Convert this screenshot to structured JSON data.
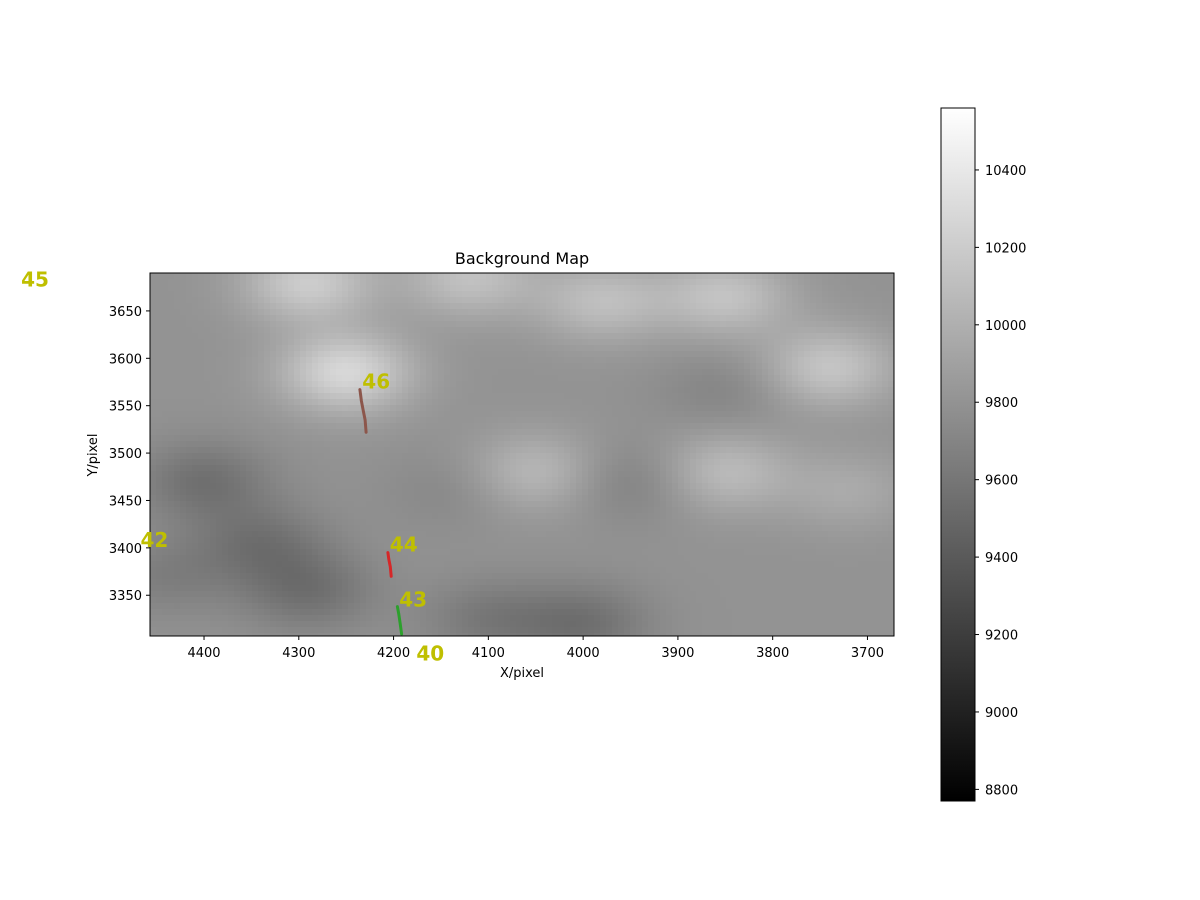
{
  "chart_data": {
    "type": "heatmap",
    "title": "Background Map",
    "xlabel": "X/pixel",
    "ylabel": "Y/pixel",
    "xlim": [
      4457,
      3672
    ],
    "ylim": [
      3307,
      3690
    ],
    "x_ticks": [
      4400,
      4300,
      4200,
      4100,
      4000,
      3900,
      3800,
      3700
    ],
    "y_ticks": [
      3350,
      3400,
      3450,
      3500,
      3550,
      3600,
      3650
    ],
    "colormap": "gray",
    "base_value": 9800,
    "blobs": [
      {
        "x": 4250,
        "y": 3585,
        "v": 10280
      },
      {
        "x": 4290,
        "y": 3680,
        "v": 10200
      },
      {
        "x": 4120,
        "y": 3685,
        "v": 10120
      },
      {
        "x": 3980,
        "y": 3660,
        "v": 10100
      },
      {
        "x": 3850,
        "y": 3665,
        "v": 10130
      },
      {
        "x": 3740,
        "y": 3590,
        "v": 10150
      },
      {
        "x": 4050,
        "y": 3480,
        "v": 10060
      },
      {
        "x": 3850,
        "y": 3480,
        "v": 10080
      },
      {
        "x": 3720,
        "y": 3460,
        "v": 9960
      },
      {
        "x": 4400,
        "y": 3470,
        "v": 9560
      },
      {
        "x": 4340,
        "y": 3405,
        "v": 9580
      },
      {
        "x": 4290,
        "y": 3355,
        "v": 9560
      },
      {
        "x": 4000,
        "y": 3320,
        "v": 9560
      },
      {
        "x": 4100,
        "y": 3325,
        "v": 9620
      },
      {
        "x": 3950,
        "y": 3470,
        "v": 9660
      },
      {
        "x": 3850,
        "y": 3565,
        "v": 9700
      },
      {
        "x": 4140,
        "y": 3460,
        "v": 9720
      },
      {
        "x": 4440,
        "y": 3370,
        "v": 9660
      }
    ],
    "tracks": [
      {
        "id": "46",
        "color": "#8c564b",
        "points": [
          [
            4235.5,
            3567
          ],
          [
            4234,
            3555
          ],
          [
            4232,
            3545
          ],
          [
            4230,
            3535
          ],
          [
            4229,
            3522
          ]
        ]
      },
      {
        "id": "44",
        "color": "#d62728",
        "points": [
          [
            4206,
            3395
          ],
          [
            4205,
            3388
          ],
          [
            4203.5,
            3380
          ],
          [
            4202.5,
            3370
          ]
        ]
      },
      {
        "id": "43",
        "color": "#2ca02c",
        "points": [
          [
            4196,
            3338
          ],
          [
            4194.5,
            3330
          ],
          [
            4193,
            3320
          ],
          [
            4191.5,
            3309
          ]
        ]
      }
    ],
    "track_labels": [
      {
        "text": "46",
        "x": 4233,
        "y": 3568
      },
      {
        "text": "44",
        "x": 4204,
        "y": 3396
      },
      {
        "text": "43",
        "x": 4194,
        "y": 3338
      },
      {
        "text": "42",
        "x": 4467,
        "y": 3401
      },
      {
        "text": "40",
        "x": 4176,
        "y": 3281
      },
      {
        "text": "45",
        "x": 4593,
        "y": 3676
      }
    ],
    "label_color": "#bfbf00",
    "colorbar": {
      "range": [
        8770,
        10560
      ],
      "ticks": [
        8800,
        9000,
        9200,
        9400,
        9600,
        9800,
        10000,
        10200,
        10400
      ]
    }
  }
}
